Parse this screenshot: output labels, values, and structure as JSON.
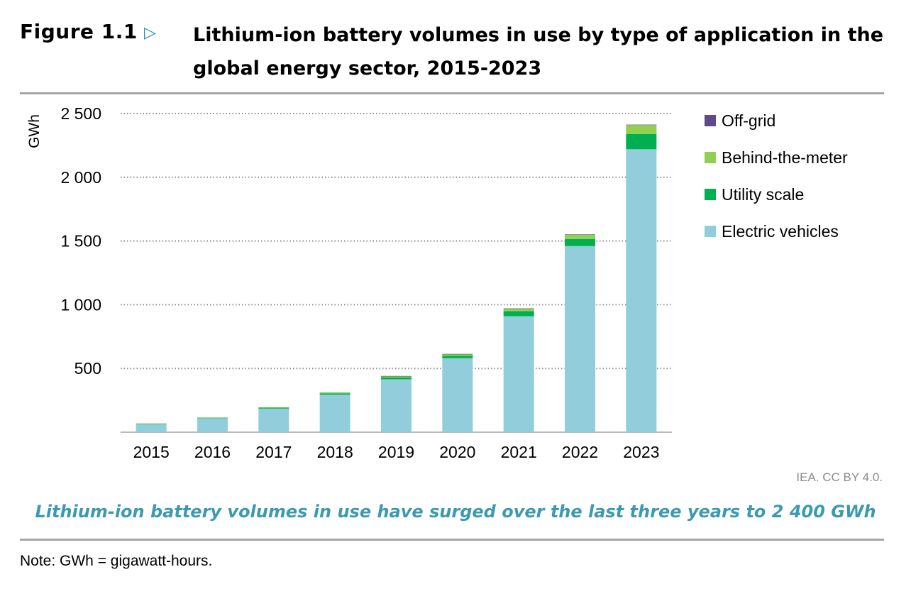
{
  "header": {
    "figure_label": "Figure 1.1",
    "title": "Lithium-ion battery volumes in use by type of application in the global energy sector, 2015-2023"
  },
  "chart_data": {
    "type": "bar",
    "stacked": true,
    "categories": [
      "2015",
      "2016",
      "2017",
      "2018",
      "2019",
      "2020",
      "2021",
      "2022",
      "2023"
    ],
    "ylabel": "GWh",
    "ylim": [
      0,
      2500
    ],
    "yticks": [
      500,
      1000,
      1500,
      2000,
      2500
    ],
    "ytick_labels": [
      "500",
      "1 000",
      "1 500",
      "2 000",
      "2 500"
    ],
    "grid": true,
    "legend_position": "right",
    "series": [
      {
        "name": "Electric vehicles",
        "color": "#92cddc",
        "values": [
          65,
          110,
          185,
          295,
          415,
          580,
          910,
          1460,
          2220
        ]
      },
      {
        "name": "Utility scale",
        "color": "#00b050",
        "values": [
          2,
          3,
          7,
          10,
          15,
          20,
          40,
          55,
          120
        ]
      },
      {
        "name": "Behind-the-meter",
        "color": "#92d050",
        "values": [
          2,
          3,
          4,
          8,
          10,
          13,
          20,
          35,
          70
        ]
      },
      {
        "name": "Off-grid",
        "color": "#5f4b8b",
        "values": [
          0,
          0,
          0,
          0,
          1,
          1,
          1,
          2,
          3
        ]
      }
    ],
    "legend_order": [
      "Off-grid",
      "Behind-the-meter",
      "Utility scale",
      "Electric vehicles"
    ]
  },
  "footer": {
    "source": "IEA. CC BY 4.0.",
    "subtitle": "Lithium-ion battery volumes in use have surged over the last three years to 2 400 GWh",
    "note": "Note: GWh = gigawatt-hours."
  }
}
